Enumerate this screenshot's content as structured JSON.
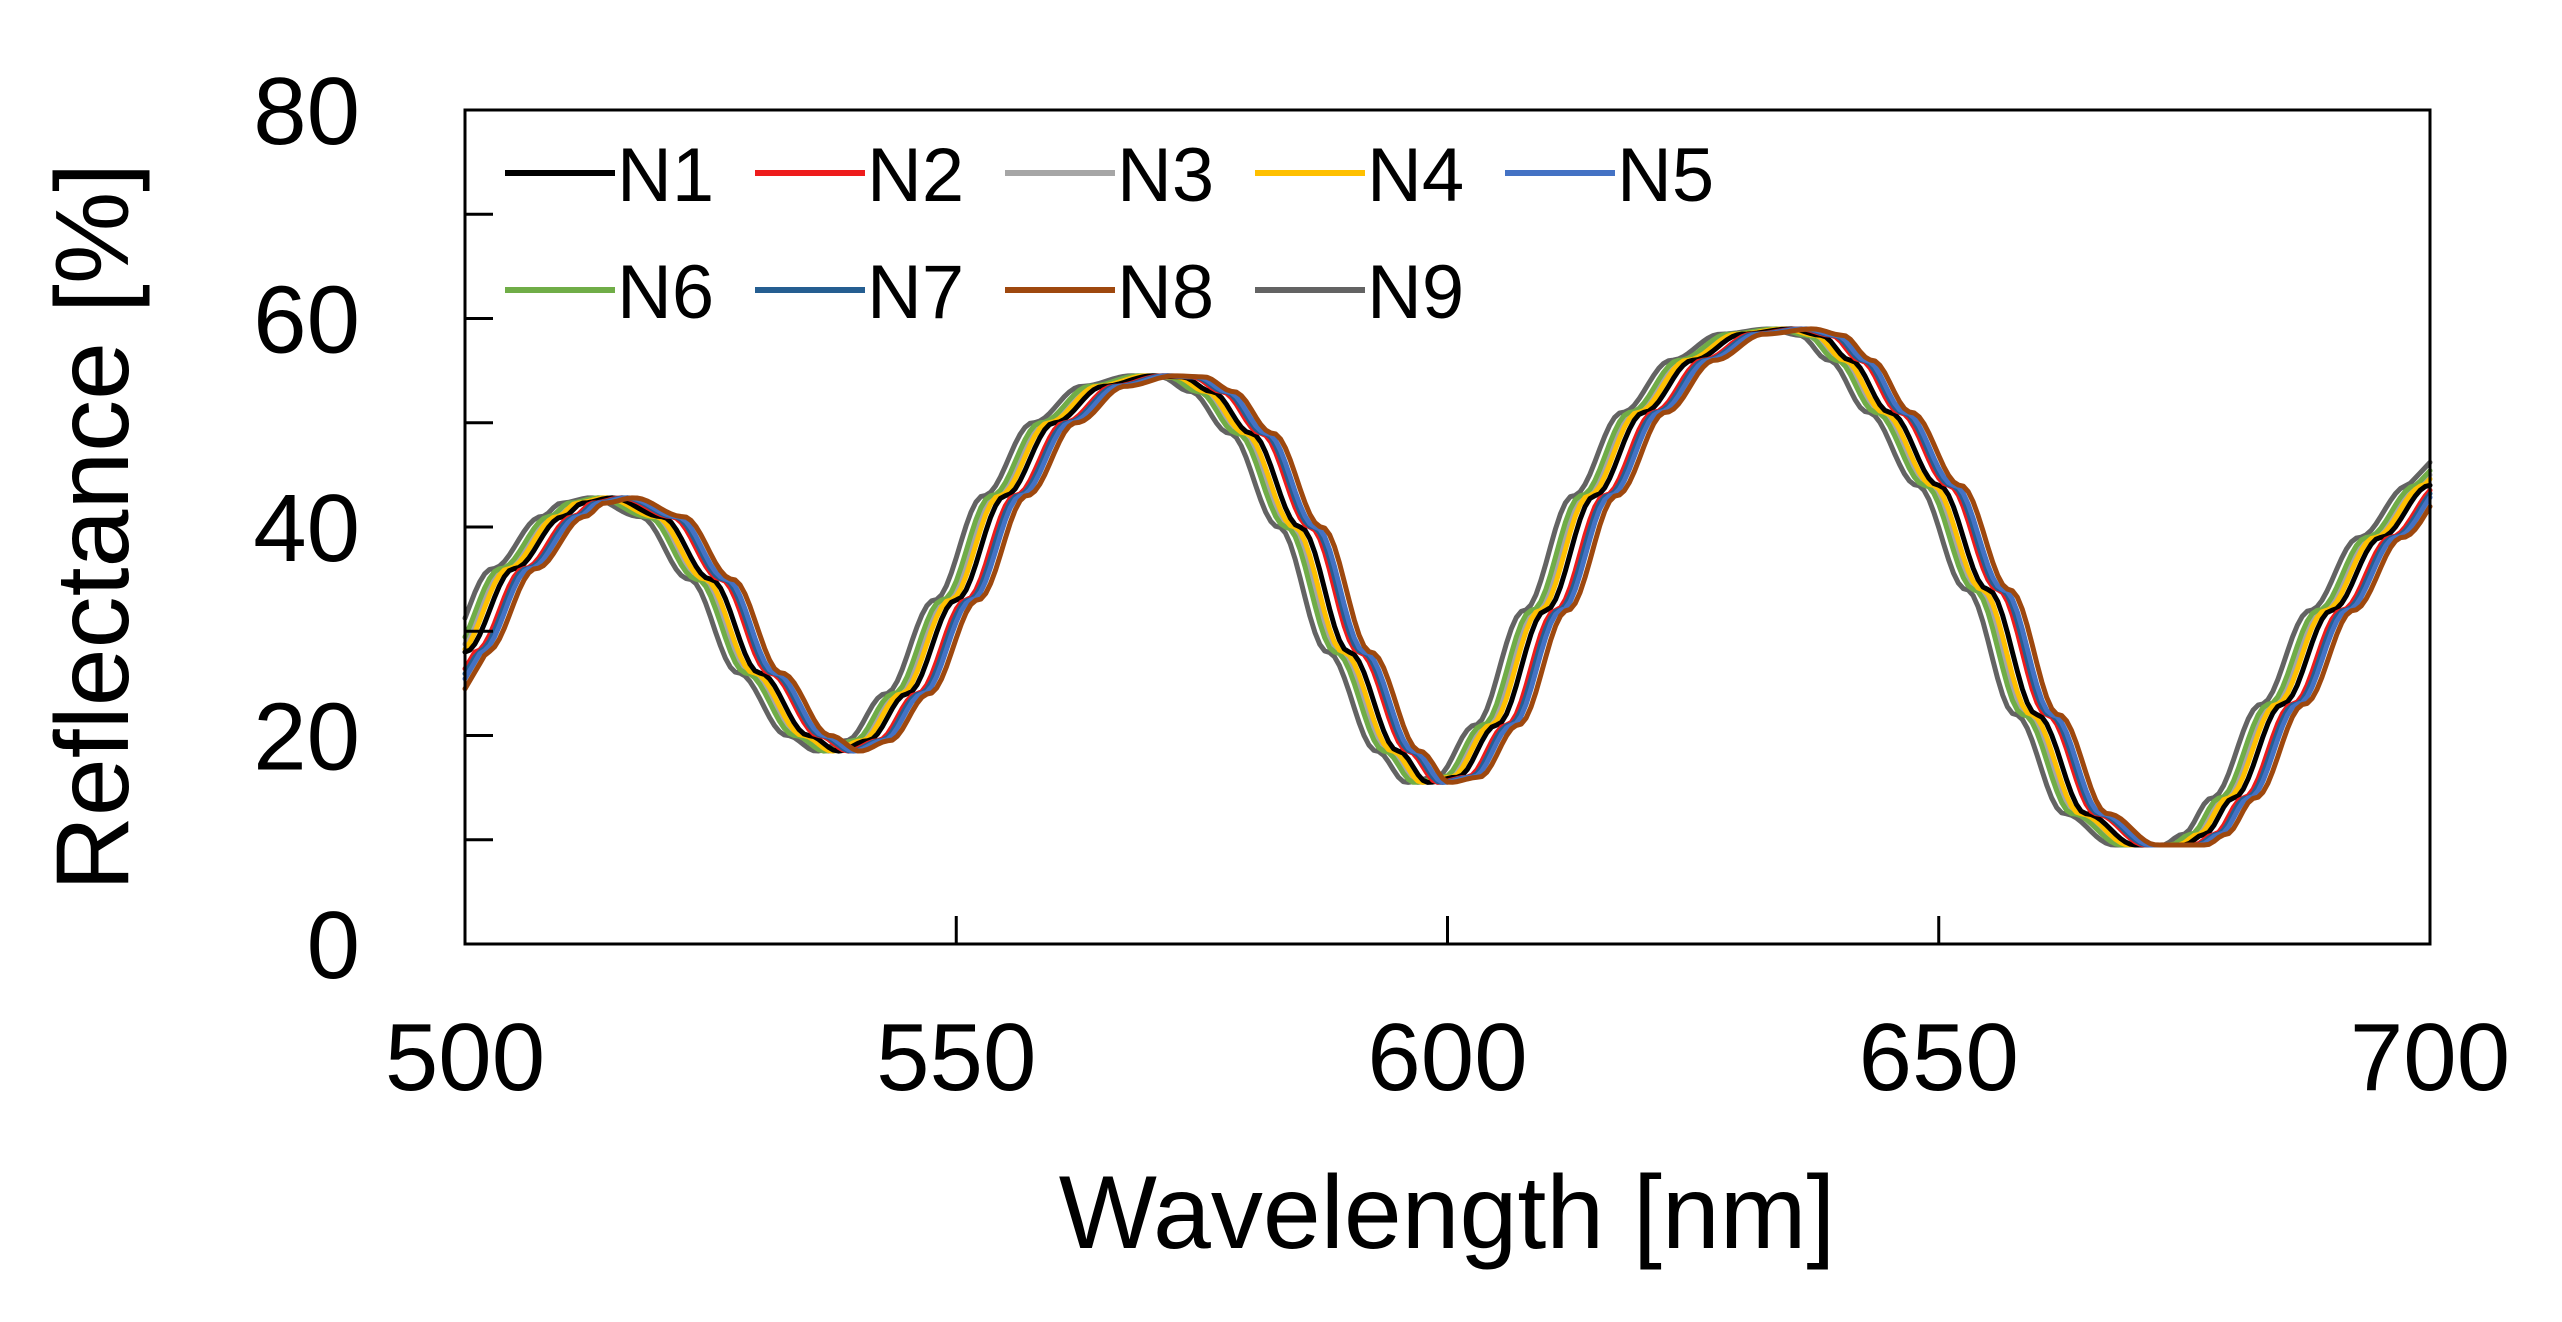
{
  "chart_data": {
    "type": "line",
    "title": "",
    "xlabel": "Wavelength [nm]",
    "ylabel": "Reflectance [%]",
    "xlim": [
      500,
      700
    ],
    "ylim": [
      0,
      80
    ],
    "xticks": [
      500,
      550,
      600,
      650,
      700
    ],
    "yticks": [
      0,
      20,
      40,
      60,
      80
    ],
    "x_tick_labels": [
      "500",
      "550",
      "600",
      "650",
      "700"
    ],
    "y_tick_labels": [
      "0",
      "20",
      "40",
      "60",
      "80"
    ],
    "y_minor_ticks": [
      10,
      30,
      50,
      70
    ],
    "grid": false,
    "legend_position": "top-left",
    "base_curve": {
      "x": [
        500,
        505,
        510,
        512,
        515,
        520,
        525,
        530,
        535,
        538,
        541,
        545,
        550,
        555,
        560,
        565,
        570,
        573,
        576,
        580,
        585,
        590,
        595,
        598,
        601,
        605,
        610,
        615,
        620,
        625,
        630,
        635,
        638,
        641,
        645,
        650,
        655,
        660,
        665,
        670,
        675,
        677,
        680,
        685,
        690,
        695,
        700
      ],
      "y": [
        28,
        36,
        41,
        42.3,
        42.8,
        41,
        35,
        26,
        20,
        18.5,
        19.5,
        24,
        33,
        43,
        50,
        53.5,
        54.5,
        54.4,
        53,
        49,
        40,
        28,
        18.5,
        15.5,
        16,
        21,
        32,
        43,
        51,
        56,
        58.5,
        59,
        58.4,
        56,
        51,
        44,
        34,
        22,
        12.5,
        9.5,
        9.5,
        10.5,
        14,
        23,
        32,
        39,
        44
      ]
    },
    "series": [
      {
        "name": "N1",
        "color": "#000000",
        "shift": 0.0
      },
      {
        "name": "N2",
        "color": "#ee1c1c",
        "shift": 1.0
      },
      {
        "name": "N3",
        "color": "#a6a6a6",
        "shift": -1.0
      },
      {
        "name": "N4",
        "color": "#ffc000",
        "shift": -0.6
      },
      {
        "name": "N5",
        "color": "#4472c4",
        "shift": 1.6
      },
      {
        "name": "N6",
        "color": "#70ad47",
        "shift": -1.4
      },
      {
        "name": "N7",
        "color": "#255e91",
        "shift": 1.3
      },
      {
        "name": "N8",
        "color": "#9e480e",
        "shift": 2.2
      },
      {
        "name": "N9",
        "color": "#636363",
        "shift": -2.2
      }
    ]
  }
}
